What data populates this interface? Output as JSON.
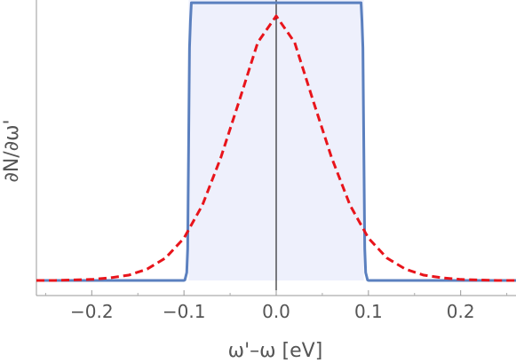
{
  "chart_data": {
    "type": "line",
    "xlabel": "ω'–ω [eV]",
    "ylabel": "∂N/∂ω'",
    "xlim": [
      -0.26,
      0.26
    ],
    "ylim": [
      0,
      1.05
    ],
    "xticks": [
      -0.2,
      -0.1,
      0.0,
      0.1,
      0.2
    ],
    "xtick_labels": [
      "−0.2",
      "−0.1",
      "0.0",
      "0.1",
      "0.2"
    ],
    "yticks_shown": false,
    "vertical_line_at": 0.0,
    "shaded_band": {
      "x_from": -0.095,
      "x_to": 0.095,
      "color": "#eef0fc"
    },
    "series": [
      {
        "style": "solid",
        "color": "#5b80bf",
        "x": [
          -0.26,
          -0.1,
          -0.099,
          -0.097,
          -0.096,
          -0.095,
          -0.094,
          -0.093,
          -0.092,
          0.092,
          0.093,
          0.094,
          0.095,
          0.096,
          0.097,
          0.099,
          0.1,
          0.26
        ],
        "y": [
          0.0,
          0.0,
          0.002,
          0.03,
          0.12,
          0.5,
          0.88,
          0.98,
          1.05,
          1.05,
          0.98,
          0.88,
          0.5,
          0.12,
          0.03,
          0.002,
          0.0,
          0.0
        ]
      },
      {
        "style": "dashed",
        "color": "#e8141b",
        "x": [
          -0.26,
          -0.24,
          -0.22,
          -0.2,
          -0.18,
          -0.16,
          -0.14,
          -0.12,
          -0.1,
          -0.08,
          -0.06,
          -0.04,
          -0.02,
          0.0,
          0.02,
          0.04,
          0.06,
          0.08,
          0.1,
          0.12,
          0.14,
          0.16,
          0.18,
          0.2,
          0.22,
          0.24,
          0.26
        ],
        "y": [
          0.0,
          0.0,
          0.002,
          0.004,
          0.01,
          0.02,
          0.043,
          0.085,
          0.16,
          0.285,
          0.465,
          0.68,
          0.9,
          1.0,
          0.9,
          0.68,
          0.465,
          0.285,
          0.16,
          0.085,
          0.043,
          0.02,
          0.01,
          0.004,
          0.002,
          0.0,
          0.0
        ]
      }
    ]
  }
}
